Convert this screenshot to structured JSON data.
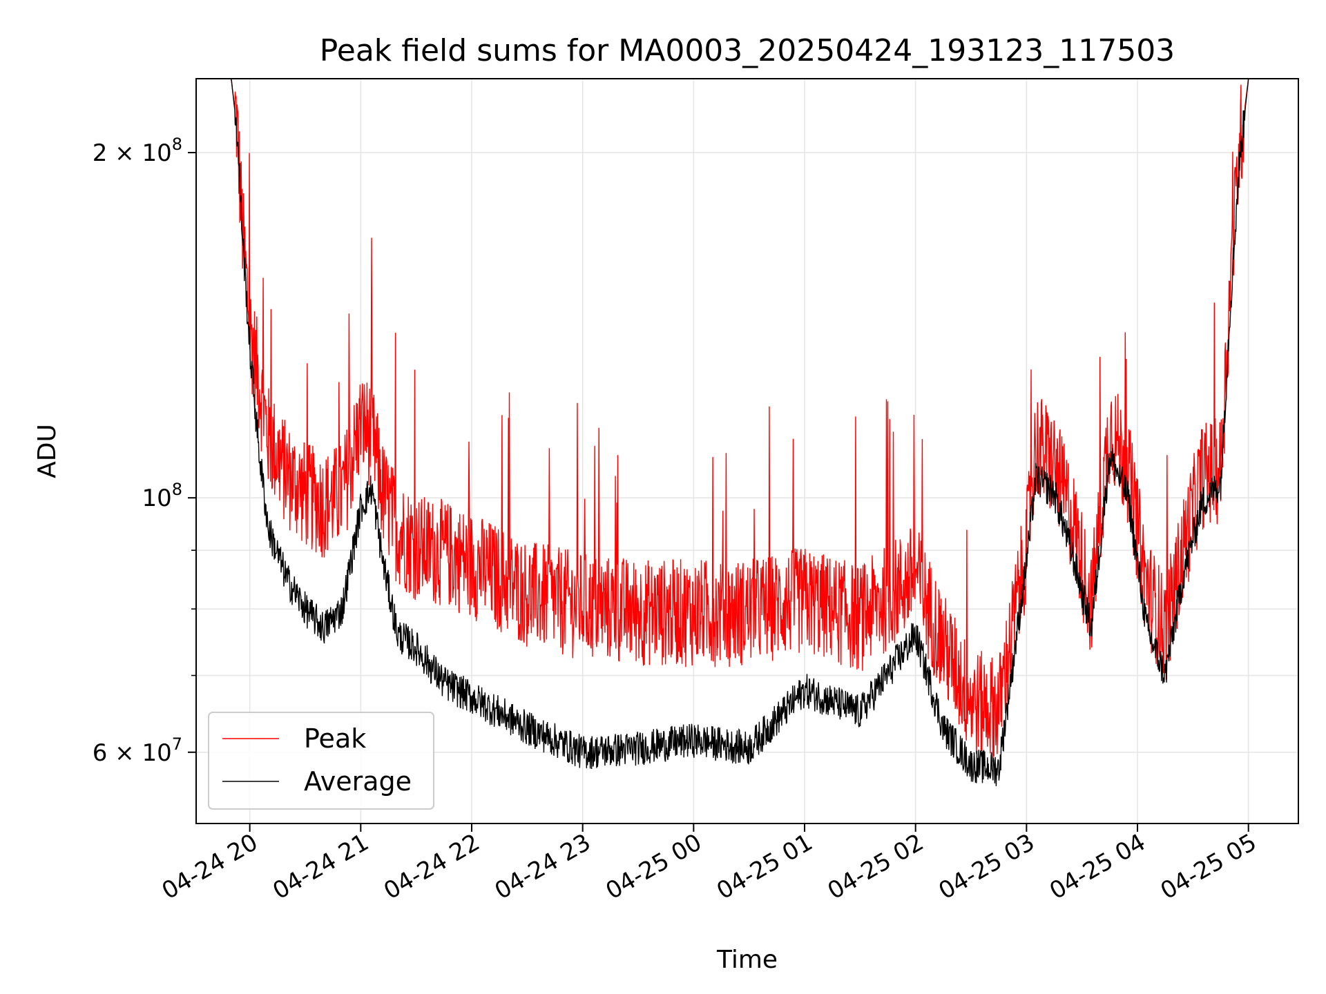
{
  "chart_data": {
    "type": "line",
    "title": "Peak field sums for MA0003_20250424_193123_117503",
    "xlabel": "Time",
    "ylabel": "ADU",
    "yscale": "log",
    "ylim": [
      52000000,
      232000000
    ],
    "xlim": [
      "2025-04-24 19:31",
      "2025-04-25 05:27"
    ],
    "grid": true,
    "legend_position": "bottom-left",
    "x_ticks": [
      "04-24 20",
      "04-24 21",
      "04-24 22",
      "04-24 23",
      "04-25 00",
      "04-25 01",
      "04-25 02",
      "04-25 03",
      "04-25 04",
      "04-25 05"
    ],
    "y_tick_labels": [
      {
        "value": 200000000,
        "mantissa": "2",
        "exponent": "8"
      },
      {
        "value": 100000000,
        "mantissa": "",
        "exponent": "8"
      },
      {
        "value": 60000000,
        "mantissa": "6",
        "exponent": "7"
      }
    ],
    "y_minor_ticks": [
      70000000,
      80000000,
      90000000
    ],
    "series": [
      {
        "name": "Peak",
        "color": "#ff0000",
        "x": [
          "2025-04-24 19:31",
          "2025-04-24 19:50",
          "2025-04-24 19:53",
          "2025-04-24 19:56",
          "2025-04-24 20:00",
          "2025-04-24 20:05",
          "2025-04-24 20:10",
          "2025-04-24 20:20",
          "2025-04-24 20:30",
          "2025-04-24 20:40",
          "2025-04-24 20:50",
          "2025-04-24 21:00",
          "2025-04-24 21:06",
          "2025-04-24 21:12",
          "2025-04-24 21:20",
          "2025-04-24 21:30",
          "2025-04-24 21:45",
          "2025-04-24 22:00",
          "2025-04-24 22:30",
          "2025-04-24 23:00",
          "2025-04-24 23:30",
          "2025-04-25 00:00",
          "2025-04-25 00:30",
          "2025-04-25 01:00",
          "2025-04-25 01:30",
          "2025-04-25 02:00",
          "2025-04-25 02:15",
          "2025-04-25 02:30",
          "2025-04-25 02:45",
          "2025-04-25 03:00",
          "2025-04-25 03:05",
          "2025-04-25 03:15",
          "2025-04-25 03:25",
          "2025-04-25 03:35",
          "2025-04-25 03:45",
          "2025-04-25 03:55",
          "2025-04-25 04:05",
          "2025-04-25 04:15",
          "2025-04-25 04:25",
          "2025-04-25 04:35",
          "2025-04-25 04:45",
          "2025-04-25 04:50",
          "2025-04-25 04:55",
          "2025-04-25 05:00",
          "2025-04-25 05:27"
        ],
        "y": [
          232000000,
          232000000,
          210000000,
          170000000,
          140000000,
          125000000,
          112000000,
          104000000,
          100000000,
          98000000,
          100000000,
          115000000,
          113000000,
          100000000,
          93000000,
          90000000,
          89000000,
          87000000,
          82000000,
          80000000,
          79000000,
          79000000,
          79000000,
          81000000,
          78000000,
          85000000,
          74000000,
          66000000,
          65000000,
          90000000,
          111000000,
          106000000,
          95000000,
          80000000,
          115000000,
          105000000,
          83000000,
          76000000,
          90000000,
          104000000,
          105000000,
          150000000,
          200000000,
          232000000,
          232000000
        ]
      },
      {
        "name": "Average",
        "color": "#000000",
        "x": [
          "2025-04-24 19:31",
          "2025-04-24 19:50",
          "2025-04-24 19:53",
          "2025-04-24 19:56",
          "2025-04-24 20:00",
          "2025-04-24 20:05",
          "2025-04-24 20:10",
          "2025-04-24 20:20",
          "2025-04-24 20:30",
          "2025-04-24 20:40",
          "2025-04-24 20:50",
          "2025-04-24 21:00",
          "2025-04-24 21:06",
          "2025-04-24 21:12",
          "2025-04-24 21:20",
          "2025-04-24 21:30",
          "2025-04-24 21:45",
          "2025-04-24 22:00",
          "2025-04-24 22:30",
          "2025-04-24 23:00",
          "2025-04-24 23:30",
          "2025-04-25 00:00",
          "2025-04-25 00:30",
          "2025-04-25 01:00",
          "2025-04-25 01:30",
          "2025-04-25 02:00",
          "2025-04-25 02:15",
          "2025-04-25 02:30",
          "2025-04-25 02:45",
          "2025-04-25 03:00",
          "2025-04-25 03:05",
          "2025-04-25 03:15",
          "2025-04-25 03:25",
          "2025-04-25 03:35",
          "2025-04-25 03:45",
          "2025-04-25 03:55",
          "2025-04-25 04:05",
          "2025-04-25 04:15",
          "2025-04-25 04:25",
          "2025-04-25 04:35",
          "2025-04-25 04:45",
          "2025-04-25 04:50",
          "2025-04-25 04:55",
          "2025-04-25 05:00",
          "2025-04-25 05:27"
        ],
        "y": [
          232000000,
          232000000,
          210000000,
          170000000,
          135000000,
          110000000,
          94000000,
          85000000,
          80000000,
          77000000,
          80000000,
          98000000,
          102000000,
          88000000,
          76000000,
          74000000,
          69000000,
          67000000,
          63000000,
          60000000,
          60500000,
          61500000,
          60500000,
          68000000,
          65000000,
          76000000,
          63000000,
          58500000,
          58000000,
          88000000,
          104000000,
          101000000,
          89000000,
          77000000,
          109000000,
          100000000,
          77000000,
          70000000,
          86000000,
          99000000,
          103000000,
          145000000,
          195000000,
          232000000,
          232000000
        ]
      }
    ]
  }
}
